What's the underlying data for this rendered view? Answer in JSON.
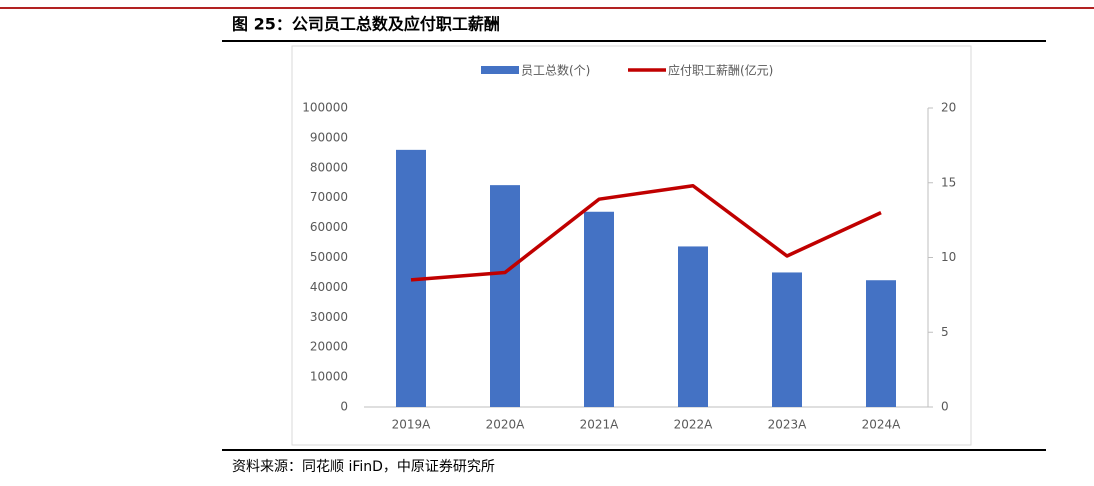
{
  "chart_data": {
    "type": "bar",
    "title": "图 25：公司员工总数及应付职工薪酬",
    "source": "资料来源：同花顺 iFinD，中原证券研究所",
    "categories": [
      "2019A",
      "2020A",
      "2021A",
      "2022A",
      "2023A",
      "2024A"
    ],
    "series": [
      {
        "name": "员工总数(个)",
        "type": "bar",
        "color": "#4472c4",
        "values": [
          86000,
          74200,
          65300,
          53700,
          45000,
          42400
        ]
      },
      {
        "name": "应付职工薪酬(亿元)",
        "type": "line",
        "axis": "y2",
        "color": "#c00000",
        "values": [
          8.5,
          9.0,
          13.9,
          14.8,
          10.1,
          13.0
        ]
      }
    ],
    "ylim": [
      0,
      100000
    ],
    "yticks": [
      0,
      10000,
      20000,
      30000,
      40000,
      50000,
      60000,
      70000,
      80000,
      90000,
      100000
    ],
    "y2lim": [
      0,
      20
    ],
    "y2ticks": [
      0,
      5,
      10,
      15,
      20
    ],
    "legend": "top"
  }
}
